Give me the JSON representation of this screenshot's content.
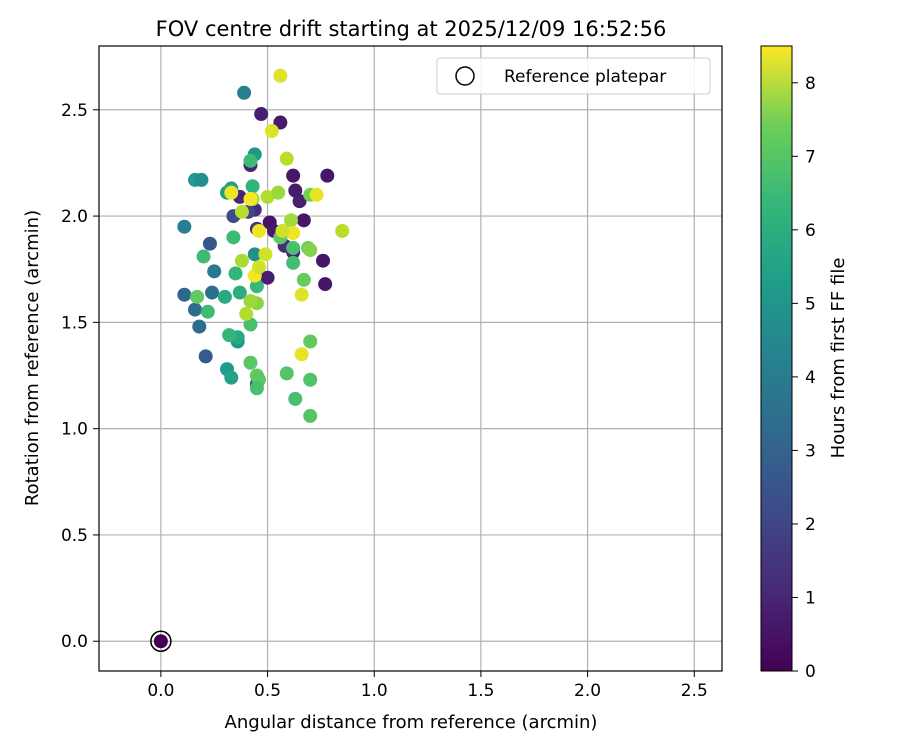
{
  "chart_data": {
    "type": "scatter",
    "title": "FOV centre drift starting at 2025/12/09 16:52:56",
    "xlabel": "Angular distance from reference (arcmin)",
    "ylabel": "Rotation from reference (arcmin)",
    "xlim": [
      -0.29,
      2.63
    ],
    "ylim": [
      -0.14,
      2.8
    ],
    "xticks": [
      "0.0",
      "0.5",
      "1.0",
      "1.5",
      "2.0",
      "2.5"
    ],
    "yticks": [
      "0.0",
      "0.5",
      "1.0",
      "1.5",
      "2.0",
      "2.5"
    ],
    "grid": true,
    "legend": {
      "placement": "top-right",
      "entries": [
        "Reference platepar"
      ]
    },
    "reference_point": {
      "x": 0.0,
      "y": 0.0,
      "hours": 0.0,
      "label": "Reference platepar"
    },
    "colorbar": {
      "label": "Hours from first FF file",
      "colormap": "viridis",
      "range": [
        0,
        8.5
      ],
      "ticks": [
        "0",
        "1",
        "2",
        "3",
        "4",
        "5",
        "6",
        "7",
        "8"
      ]
    },
    "points": [
      [
        0.47,
        2.48,
        0.7
      ],
      [
        0.56,
        2.44,
        0.6
      ],
      [
        0.62,
        2.19,
        0.5
      ],
      [
        0.78,
        2.19,
        0.5
      ],
      [
        0.63,
        2.12,
        0.6
      ],
      [
        0.65,
        2.07,
        0.7
      ],
      [
        0.42,
        2.24,
        0.8
      ],
      [
        0.37,
        2.09,
        0.9
      ],
      [
        0.44,
        2.03,
        1.0
      ],
      [
        0.51,
        1.97,
        0.4
      ],
      [
        0.67,
        1.98,
        0.5
      ],
      [
        0.53,
        1.93,
        0.6
      ],
      [
        0.58,
        1.86,
        1.1
      ],
      [
        0.62,
        1.83,
        0.8
      ],
      [
        0.76,
        1.79,
        0.5
      ],
      [
        0.77,
        1.68,
        0.5
      ],
      [
        0.5,
        1.71,
        0.7
      ],
      [
        0.45,
        1.94,
        1.2
      ],
      [
        0.34,
        2.0,
        2.0
      ],
      [
        0.41,
        2.02,
        1.8
      ],
      [
        0.23,
        1.87,
        2.3
      ],
      [
        0.11,
        1.63,
        2.8
      ],
      [
        0.16,
        1.56,
        2.9
      ],
      [
        0.18,
        1.48,
        3.0
      ],
      [
        0.21,
        1.34,
        2.4
      ],
      [
        0.24,
        1.64,
        3.1
      ],
      [
        0.45,
        1.21,
        2.6
      ],
      [
        0.11,
        1.95,
        3.6
      ],
      [
        0.25,
        1.74,
        3.4
      ],
      [
        0.39,
        2.58,
        3.6
      ],
      [
        0.16,
        2.17,
        4.6
      ],
      [
        0.19,
        2.17,
        4.2
      ],
      [
        0.44,
        2.29,
        4.5
      ],
      [
        0.31,
        2.11,
        4.7
      ],
      [
        0.33,
        2.13,
        4.8
      ],
      [
        0.43,
        2.14,
        5.5
      ],
      [
        0.44,
        1.82,
        4.2
      ],
      [
        0.31,
        1.28,
        4.6
      ],
      [
        0.33,
        1.24,
        4.9
      ],
      [
        0.36,
        1.41,
        4.5
      ],
      [
        0.36,
        1.43,
        5.1
      ],
      [
        0.32,
        1.44,
        5.6
      ],
      [
        0.37,
        1.64,
        5.3
      ],
      [
        0.3,
        1.62,
        5.1
      ],
      [
        0.35,
        1.73,
        5.6
      ],
      [
        0.34,
        1.9,
        5.8
      ],
      [
        0.2,
        1.81,
        5.8
      ],
      [
        0.22,
        1.55,
        5.8
      ],
      [
        0.17,
        1.62,
        6.4
      ],
      [
        0.42,
        1.49,
        6.0
      ],
      [
        0.45,
        1.67,
        5.7
      ],
      [
        0.42,
        1.31,
        6.3
      ],
      [
        0.45,
        1.25,
        6.4
      ],
      [
        0.46,
        1.23,
        6.3
      ],
      [
        0.45,
        1.19,
        6.0
      ],
      [
        0.59,
        1.26,
        6.2
      ],
      [
        0.63,
        1.14,
        6.0
      ],
      [
        0.7,
        1.06,
        6.2
      ],
      [
        0.7,
        1.23,
        6.1
      ],
      [
        0.7,
        1.41,
        6.4
      ],
      [
        0.67,
        1.7,
        6.5
      ],
      [
        0.62,
        1.78,
        5.9
      ],
      [
        0.62,
        1.85,
        6.0
      ],
      [
        0.69,
        1.85,
        6.6
      ],
      [
        0.7,
        1.84,
        6.9
      ],
      [
        0.56,
        1.9,
        6.4
      ],
      [
        0.42,
        2.26,
        5.8
      ],
      [
        0.7,
        2.1,
        6.7
      ],
      [
        0.45,
        1.59,
        7.0
      ],
      [
        0.42,
        1.6,
        7.2
      ],
      [
        0.4,
        1.54,
        7.5
      ],
      [
        0.38,
        1.79,
        7.4
      ],
      [
        0.38,
        2.02,
        7.6
      ],
      [
        0.43,
        2.08,
        7.3
      ],
      [
        0.49,
        1.82,
        7.9
      ],
      [
        0.44,
        1.72,
        8.4
      ],
      [
        0.46,
        1.76,
        7.9
      ],
      [
        0.46,
        1.93,
        8.3
      ],
      [
        0.5,
        2.09,
        7.5
      ],
      [
        0.55,
        2.11,
        7.2
      ],
      [
        0.52,
        2.4,
        8.1
      ],
      [
        0.59,
        2.27,
        7.6
      ],
      [
        0.56,
        2.66,
        8.1
      ],
      [
        0.61,
        1.98,
        7.3
      ],
      [
        0.62,
        1.92,
        8.3
      ],
      [
        0.57,
        1.93,
        7.9
      ],
      [
        0.66,
        1.35,
        8.2
      ],
      [
        0.66,
        1.63,
        8.1
      ],
      [
        0.73,
        2.1,
        8.2
      ],
      [
        0.85,
        1.93,
        7.6
      ],
      [
        0.33,
        2.11,
        8.3
      ],
      [
        0.42,
        2.08,
        8.4
      ]
    ]
  }
}
